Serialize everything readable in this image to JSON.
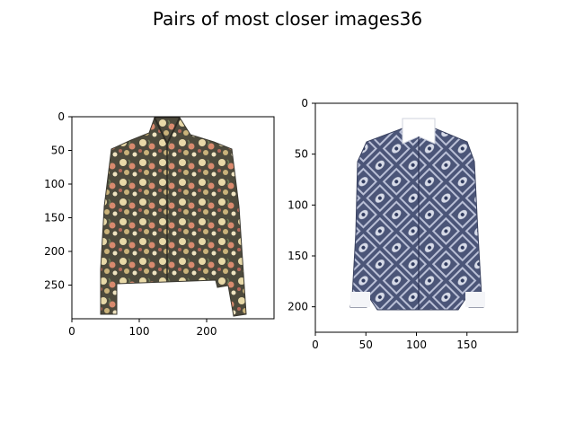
{
  "figure": {
    "title": "Pairs of most closer images36"
  },
  "chart_data": [
    {
      "type": "image",
      "content": "floral print long-sleeve blouse",
      "xlim": [
        0,
        300
      ],
      "ylim": [
        300,
        0
      ],
      "xticks": [
        0,
        100,
        200
      ],
      "yticks": [
        0,
        50,
        100,
        150,
        200,
        250
      ],
      "xtick_labels": [
        "0",
        "100",
        "200"
      ],
      "ytick_labels": [
        "0",
        "50",
        "100",
        "150",
        "200",
        "250"
      ]
    },
    {
      "type": "image",
      "content": "navy paisley print dress shirt with white collar and cuffs",
      "xlim": [
        0,
        200
      ],
      "ylim": [
        225,
        0
      ],
      "xticks": [
        0,
        50,
        100,
        150
      ],
      "yticks": [
        0,
        50,
        100,
        150,
        200
      ],
      "xtick_labels": [
        "0",
        "50",
        "100",
        "150"
      ],
      "ytick_labels": [
        "0",
        "50",
        "100",
        "150",
        "200"
      ]
    }
  ]
}
